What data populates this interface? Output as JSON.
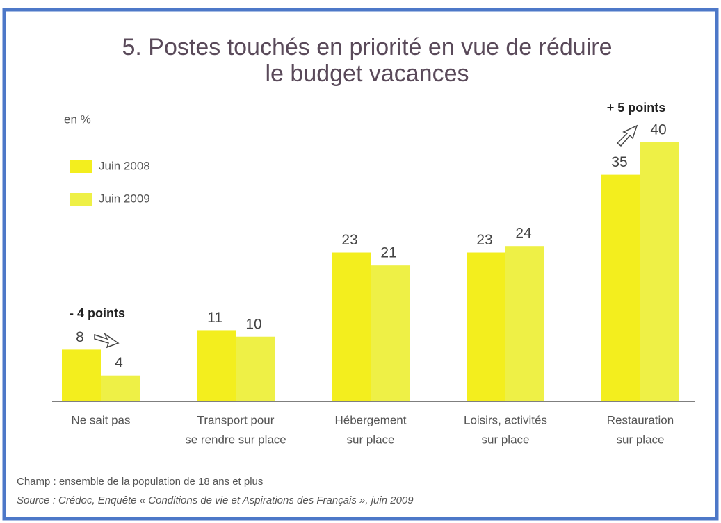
{
  "chart_data": {
    "type": "bar",
    "title": [
      "5. Postes touchés en priorité en vue de réduire",
      "le budget vacances"
    ],
    "unit_label": "en %",
    "categories": [
      [
        "Ne sait pas"
      ],
      [
        "Transport pour",
        "se rendre sur place"
      ],
      [
        "Hébergement",
        "sur place"
      ],
      [
        "Loisirs, activités",
        "sur  place"
      ],
      [
        "Restauration",
        "sur place"
      ]
    ],
    "series": [
      {
        "name": "Juin 2008",
        "color": "#f3ee1e",
        "values": [
          8,
          11,
          23,
          23,
          35
        ]
      },
      {
        "name": "Juin 2009",
        "color": "#eef046",
        "values": [
          4,
          10,
          21,
          24,
          40
        ]
      }
    ],
    "ylim": [
      0,
      40
    ],
    "annotations": [
      "- 4 points",
      "+ 5 points"
    ],
    "notes": [
      "Champ : ensemble de la population de 18 ans et plus",
      "Source : Crédoc, Enquête « Conditions de vie et Aspirations des Français », juin 2009"
    ]
  }
}
